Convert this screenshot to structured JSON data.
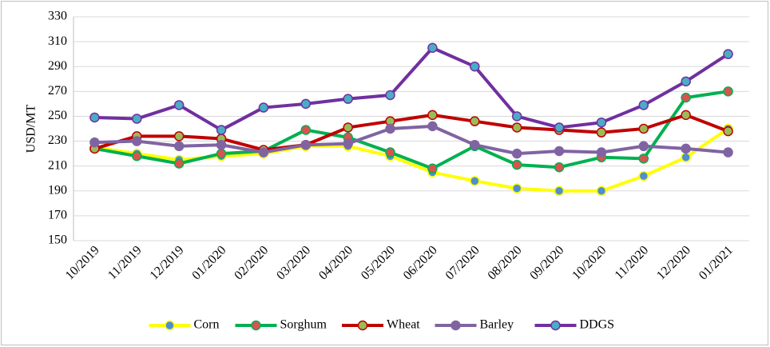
{
  "chart_data": {
    "type": "line",
    "y_label": "USD/MT",
    "categories": [
      "10/2019",
      "11/2019",
      "12/2019",
      "01/2020",
      "02/2020",
      "03/2020",
      "04/2020",
      "05/2020",
      "06/2020",
      "07/2020",
      "08/2020",
      "09/2020",
      "10/2020",
      "11/2020",
      "12/2020",
      "01/2021"
    ],
    "series": [
      {
        "name": "Corn",
        "color": "#ffff00",
        "marker_color": "#4f8fcf",
        "values": [
          225,
          220,
          215,
          218,
          220,
          226,
          226,
          218,
          205,
          198,
          192,
          190,
          190,
          202,
          217,
          240
        ]
      },
      {
        "name": "Sorghum",
        "color": "#00b050",
        "marker_color": "#d9534f",
        "values": [
          224,
          218,
          212,
          220,
          222,
          239,
          233,
          221,
          208,
          226,
          211,
          209,
          217,
          216,
          265,
          270
        ]
      },
      {
        "name": "Wheat",
        "color": "#c00000",
        "marker_color": "#9bbb59",
        "values": [
          224,
          234,
          234,
          232,
          223,
          227,
          241,
          246,
          251,
          246,
          241,
          239,
          237,
          240,
          251,
          238
        ]
      },
      {
        "name": "Barley",
        "color": "#8064a2",
        "marker_color": "#8064a2",
        "values": [
          229,
          230,
          226,
          227,
          221,
          227,
          228,
          240,
          242,
          227,
          220,
          222,
          221,
          226,
          224,
          221
        ]
      },
      {
        "name": "DDGS",
        "color": "#7030a0",
        "marker_color": "#4bacc6",
        "values": [
          249,
          248,
          259,
          239,
          257,
          260,
          264,
          267,
          305,
          290,
          250,
          241,
          245,
          259,
          278,
          300
        ]
      }
    ],
    "ylim": [
      150,
      330
    ],
    "yticks": [
      150,
      170,
      190,
      210,
      230,
      250,
      270,
      290,
      310,
      330
    ],
    "grid": true,
    "legend": "bottom"
  }
}
